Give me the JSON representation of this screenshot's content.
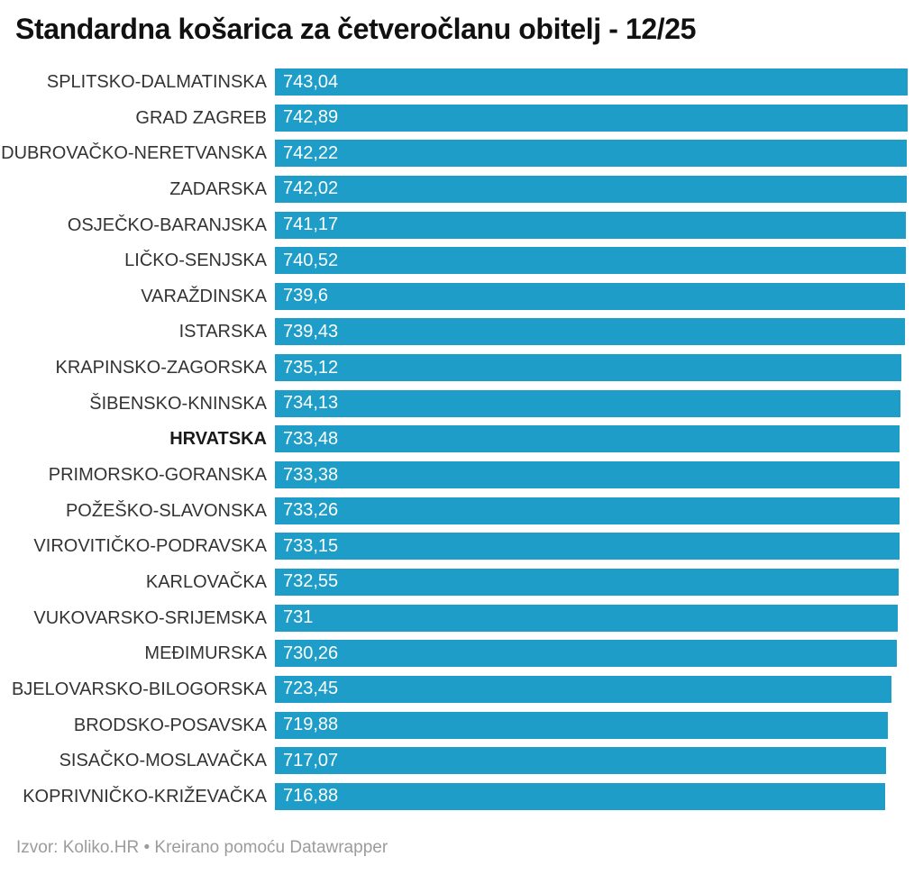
{
  "header": {
    "title": "Standardna košarica za četveročlanu obitelj - 12/25"
  },
  "footer": {
    "text": "Izvor: Koliko.HR • Kreirano pomoću Datawrapper"
  },
  "colors": {
    "bar": "#1d9dc7",
    "title": "#111111",
    "label": "#333333",
    "value_text": "#ffffff",
    "footer_text": "#9c9c9c",
    "background": "#ffffff"
  },
  "chart_data": {
    "type": "bar",
    "orientation": "horizontal",
    "title": "Standardna košarica za četveročlanu obitelj - 12/25",
    "xlabel": "",
    "ylabel": "",
    "xlim": [
      0,
      743.04
    ],
    "grid": false,
    "legend": false,
    "bar_color": "#1d9dc7",
    "highlight_category": "HRVATSKA",
    "categories": [
      "SPLITSKO-DALMATINSKA",
      "GRAD ZAGREB",
      "DUBROVAČKO-NERETVANSKA",
      "ZADARSKA",
      "OSJEČKO-BARANJSKA",
      "LIČKO-SENJSKA",
      "VARAŽDINSKA",
      "ISTARSKA",
      "KRAPINSKO-ZAGORSKA",
      "ŠIBENSKO-KNINSKA",
      "HRVATSKA",
      "PRIMORSKO-GORANSKA",
      "POŽEŠKO-SLAVONSKA",
      "VIROVITIČKO-PODRAVSKA",
      "KARLOVAČKA",
      "VUKOVARSKO-SRIJEMSKA",
      "MEĐIMURSKA",
      "BJELOVARSKO-BILOGORSKA",
      "BRODSKO-POSAVSKA",
      "SISAČKO-MOSLAVAČKA",
      "KOPRIVNIČKO-KRIŽEVAČKA"
    ],
    "values": [
      743.04,
      742.89,
      742.22,
      742.02,
      741.17,
      740.52,
      739.6,
      739.43,
      735.12,
      734.13,
      733.48,
      733.38,
      733.26,
      733.15,
      732.55,
      731,
      730.26,
      723.45,
      719.88,
      717.07,
      716.88
    ],
    "value_labels": [
      "743,04",
      "742,89",
      "742,22",
      "742,02",
      "741,17",
      "740,52",
      "739,6",
      "739,43",
      "735,12",
      "734,13",
      "733,48",
      "733,38",
      "733,26",
      "733,15",
      "732,55",
      "731",
      "730,26",
      "723,45",
      "719,88",
      "717,07",
      "716,88"
    ]
  }
}
